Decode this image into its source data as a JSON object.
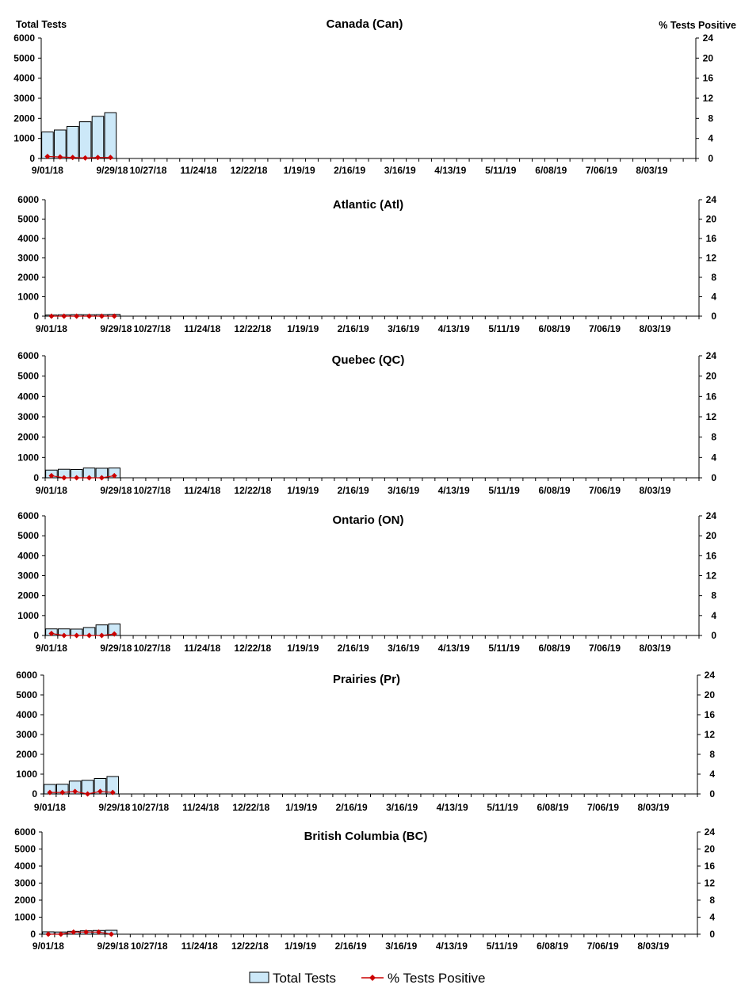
{
  "figure": {
    "left_axis_title": "Total Tests",
    "right_axis_title": "% Tests Positive"
  },
  "legend": {
    "bar_label": "Total Tests",
    "line_label": "% Tests Positive"
  },
  "colors": {
    "bar_fill": "#cce8f8",
    "bar_stroke": "#000000",
    "line": "#cc0000",
    "marker": "#cc0000"
  },
  "chart_data": [
    {
      "type": "bar",
      "title": "Canada (Can)",
      "x_tick_labels": [
        "9/01/18",
        "10/27/18",
        "11/24/18",
        "12/22/18",
        "1/19/19",
        "2/16/19",
        "3/16/19",
        "4/13/19",
        "5/11/19",
        "6/08/19",
        "7/06/19",
        "8/03/19"
      ],
      "x_tick_labels_secondary": [
        "9/29/18"
      ],
      "weeks_total": 52,
      "ylim_left": [
        0,
        6000
      ],
      "yticks_left": [
        0,
        1000,
        2000,
        3000,
        4000,
        5000,
        6000
      ],
      "ylim_right": [
        0,
        24
      ],
      "yticks_right": [
        0,
        4,
        8,
        12,
        16,
        20,
        24
      ],
      "series": [
        {
          "name": "Total Tests",
          "type": "bar",
          "values": [
            1320,
            1420,
            1600,
            1830,
            2100,
            2280
          ]
        },
        {
          "name": "% Tests Positive",
          "type": "line",
          "values": [
            0.4,
            0.3,
            0.2,
            0.1,
            0.2,
            0.2
          ]
        }
      ]
    },
    {
      "type": "bar",
      "title": "Atlantic (Atl)",
      "x_tick_labels": [
        "9/01/18",
        "10/27/18",
        "11/24/18",
        "12/22/18",
        "1/19/19",
        "2/16/19",
        "3/16/19",
        "4/13/19",
        "5/11/19",
        "6/08/19",
        "7/06/19",
        "8/03/19"
      ],
      "x_tick_labels_secondary": [
        "9/29/18"
      ],
      "weeks_total": 52,
      "ylim_left": [
        0,
        6000
      ],
      "yticks_left": [
        0,
        1000,
        2000,
        3000,
        4000,
        5000,
        6000
      ],
      "ylim_right": [
        0,
        24
      ],
      "yticks_right": [
        0,
        4,
        8,
        12,
        16,
        20,
        24
      ],
      "series": [
        {
          "name": "Total Tests",
          "type": "bar",
          "values": [
            60,
            70,
            80,
            75,
            80,
            90
          ]
        },
        {
          "name": "% Tests Positive",
          "type": "line",
          "values": [
            0.0,
            0.0,
            0.0,
            0.0,
            0.0,
            0.0
          ]
        }
      ]
    },
    {
      "type": "bar",
      "title": "Quebec (QC)",
      "x_tick_labels": [
        "9/01/18",
        "10/27/18",
        "11/24/18",
        "12/22/18",
        "1/19/19",
        "2/16/19",
        "3/16/19",
        "4/13/19",
        "5/11/19",
        "6/08/19",
        "7/06/19",
        "8/03/19"
      ],
      "x_tick_labels_secondary": [
        "9/29/18"
      ],
      "weeks_total": 52,
      "ylim_left": [
        0,
        6000
      ],
      "yticks_left": [
        0,
        1000,
        2000,
        3000,
        4000,
        5000,
        6000
      ],
      "ylim_right": [
        0,
        24
      ],
      "yticks_right": [
        0,
        4,
        8,
        12,
        16,
        20,
        24
      ],
      "series": [
        {
          "name": "Total Tests",
          "type": "bar",
          "values": [
            380,
            420,
            410,
            480,
            470,
            480
          ]
        },
        {
          "name": "% Tests Positive",
          "type": "line",
          "values": [
            0.4,
            0.0,
            0.0,
            0.0,
            0.0,
            0.4
          ]
        }
      ]
    },
    {
      "type": "bar",
      "title": "Ontario (ON)",
      "x_tick_labels": [
        "9/01/18",
        "10/27/18",
        "11/24/18",
        "12/22/18",
        "1/19/19",
        "2/16/19",
        "3/16/19",
        "4/13/19",
        "5/11/19",
        "6/08/19",
        "7/06/19",
        "8/03/19"
      ],
      "x_tick_labels_secondary": [
        "9/29/18"
      ],
      "weeks_total": 52,
      "ylim_left": [
        0,
        6000
      ],
      "yticks_left": [
        0,
        1000,
        2000,
        3000,
        4000,
        5000,
        6000
      ],
      "ylim_right": [
        0,
        24
      ],
      "yticks_right": [
        0,
        4,
        8,
        12,
        16,
        20,
        24
      ],
      "series": [
        {
          "name": "Total Tests",
          "type": "bar",
          "values": [
            330,
            330,
            320,
            400,
            530,
            580
          ]
        },
        {
          "name": "% Tests Positive",
          "type": "line",
          "values": [
            0.4,
            0.0,
            0.0,
            0.0,
            0.0,
            0.3
          ]
        }
      ]
    },
    {
      "type": "bar",
      "title": "Prairies (Pr)",
      "x_tick_labels": [
        "9/01/18",
        "10/27/18",
        "11/24/18",
        "12/22/18",
        "1/19/19",
        "2/16/19",
        "3/16/19",
        "4/13/19",
        "5/11/19",
        "6/08/19",
        "7/06/19",
        "8/03/19"
      ],
      "x_tick_labels_secondary": [
        "9/29/18"
      ],
      "weeks_total": 52,
      "ylim_left": [
        0,
        6000
      ],
      "yticks_left": [
        0,
        1000,
        2000,
        3000,
        4000,
        5000,
        6000
      ],
      "ylim_right": [
        0,
        24
      ],
      "yticks_right": [
        0,
        4,
        8,
        12,
        16,
        20,
        24
      ],
      "series": [
        {
          "name": "Total Tests",
          "type": "bar",
          "values": [
            480,
            490,
            650,
            690,
            780,
            880
          ]
        },
        {
          "name": "% Tests Positive",
          "type": "line",
          "values": [
            0.3,
            0.3,
            0.5,
            0.0,
            0.5,
            0.3
          ]
        }
      ]
    },
    {
      "type": "bar",
      "title": "British Columbia (BC)",
      "x_tick_labels": [
        "9/01/18",
        "10/27/18",
        "11/24/18",
        "12/22/18",
        "1/19/19",
        "2/16/19",
        "3/16/19",
        "4/13/19",
        "5/11/19",
        "6/08/19",
        "7/06/19",
        "8/03/19"
      ],
      "x_tick_labels_secondary": [
        "9/29/18"
      ],
      "weeks_total": 52,
      "ylim_left": [
        0,
        6000
      ],
      "yticks_left": [
        0,
        1000,
        2000,
        3000,
        4000,
        5000,
        6000
      ],
      "ylim_right": [
        0,
        24
      ],
      "yticks_right": [
        0,
        4,
        8,
        12,
        16,
        20,
        24
      ],
      "series": [
        {
          "name": "Total Tests",
          "type": "bar",
          "values": [
            140,
            130,
            170,
            200,
            220,
            230
          ]
        },
        {
          "name": "% Tests Positive",
          "type": "line",
          "values": [
            0.0,
            0.0,
            0.5,
            0.5,
            0.5,
            0.0
          ]
        }
      ]
    }
  ]
}
